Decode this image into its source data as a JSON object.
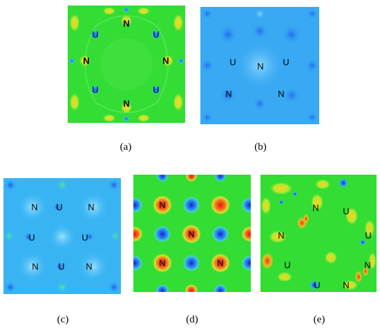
{
  "panels": [
    {
      "id": "a",
      "caption": "(a)",
      "base_color": "#33dd33",
      "atoms": [
        {
          "label": "N"
        },
        {
          "label": "U"
        },
        {
          "label": "U"
        },
        {
          "label": "N"
        },
        {
          "label": "N"
        },
        {
          "label": "U"
        },
        {
          "label": "U"
        },
        {
          "label": "N"
        }
      ]
    },
    {
      "id": "b",
      "caption": "(b)",
      "base_color": "#39a9f3",
      "atoms": [
        {
          "label": "U"
        },
        {
          "label": "N"
        },
        {
          "label": "U"
        },
        {
          "label": "N"
        },
        {
          "label": "N"
        }
      ]
    },
    {
      "id": "c",
      "caption": "(c)",
      "base_color": "#39b4f3",
      "atoms": [
        {
          "label": "N"
        },
        {
          "label": "U"
        },
        {
          "label": "N"
        },
        {
          "label": "U"
        },
        {
          "label": "U"
        },
        {
          "label": "N"
        },
        {
          "label": "U"
        },
        {
          "label": "N"
        }
      ]
    },
    {
      "id": "d",
      "caption": "(d)",
      "base_color": "#33dd33",
      "atoms": [
        {
          "label": "N"
        },
        {
          "label": "N"
        },
        {
          "label": "N"
        },
        {
          "label": "N"
        }
      ]
    },
    {
      "id": "e",
      "caption": "(e)",
      "base_color": "#33dd33",
      "atoms": [
        {
          "label": "N"
        },
        {
          "label": "U"
        },
        {
          "label": "N"
        },
        {
          "label": "U"
        },
        {
          "label": "U"
        },
        {
          "label": "N"
        },
        {
          "label": "U"
        },
        {
          "label": "N"
        }
      ]
    }
  ]
}
